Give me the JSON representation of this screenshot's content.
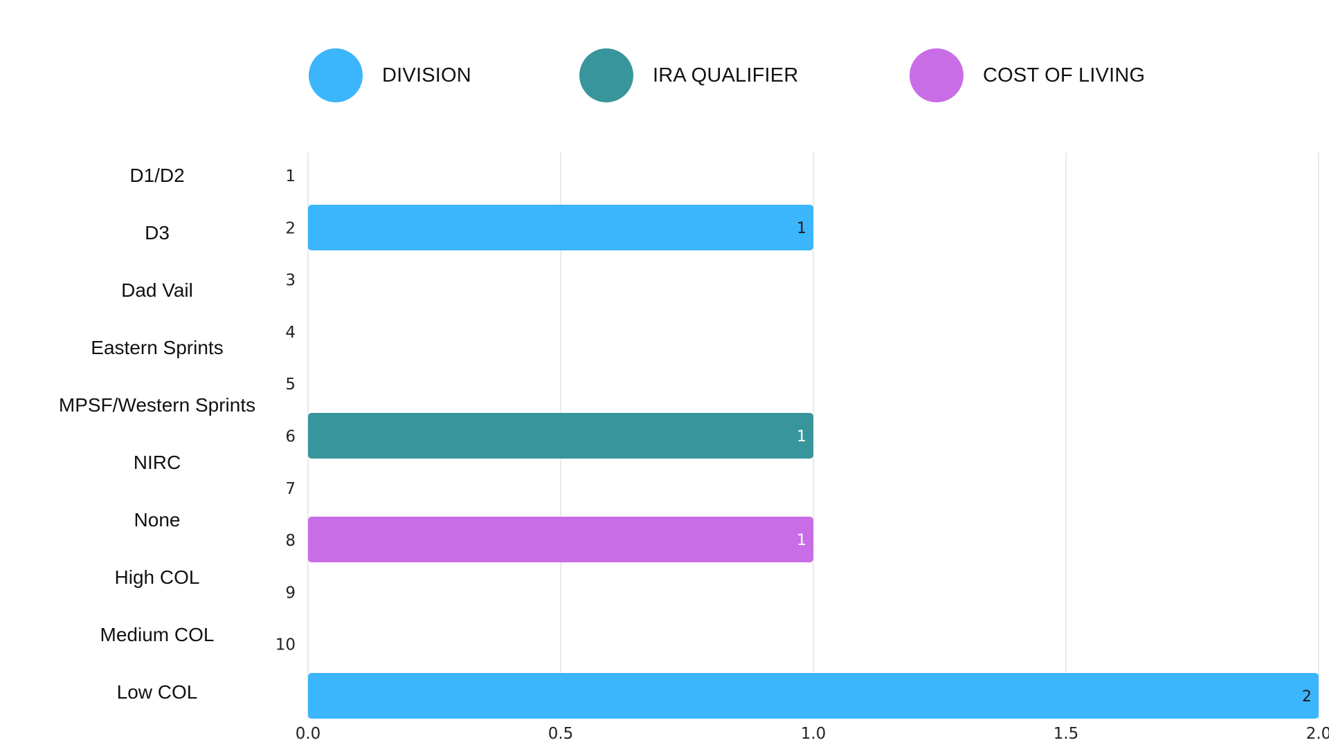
{
  "legend": [
    {
      "label": "DIVISION",
      "color": "#3bb5fb"
    },
    {
      "label": "IRA QUALIFIER",
      "color": "#38959b"
    },
    {
      "label": "COST OF LIVING",
      "color": "#c96de6"
    }
  ],
  "chart_data": {
    "type": "bar",
    "orientation": "horizontal",
    "categories": [
      "D1/D2",
      "D3",
      "Dad Vail",
      "Eastern Sprints",
      "MPSF/Western Sprints",
      "NIRC",
      "None",
      "High COL",
      "Medium COL",
      "Low COL"
    ],
    "row_numbers": [
      "1",
      "2",
      "3",
      "4",
      "5",
      "6",
      "7",
      "8",
      "9",
      "10"
    ],
    "bars": [
      {
        "row": 2,
        "value": 1,
        "series": "DIVISION",
        "label": "1"
      },
      {
        "row": 6,
        "value": 1,
        "series": "IRA QUALIFIER",
        "label": "1"
      },
      {
        "row": 8,
        "value": 1,
        "series": "COST OF LIVING",
        "label": "1"
      },
      {
        "row": 11,
        "value": 2,
        "series": "DIVISION",
        "label": "2"
      }
    ],
    "x_ticks": [
      "0.0",
      "0.5",
      "1.0",
      "1.5",
      "2.0"
    ],
    "xlim": [
      0,
      2
    ],
    "grid": "vertical",
    "legend_position": "top"
  }
}
